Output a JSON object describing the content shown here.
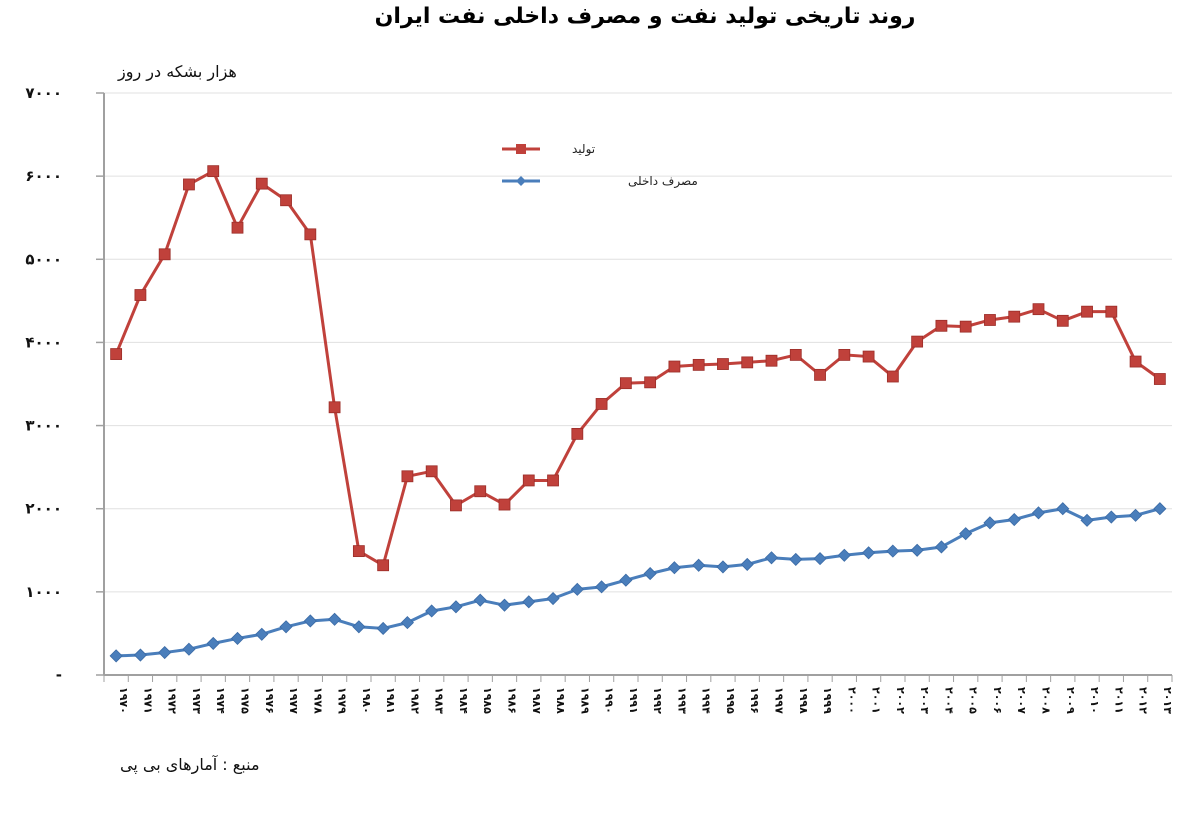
{
  "header": {
    "title": "روند تاریخی تولید نفت و مصرف داخلی نفت ایران",
    "unit_label": "هزار بشکه در روز"
  },
  "footer": {
    "source": "منبع : آمارهای بی پی"
  },
  "legend": {
    "items": [
      {
        "label": "تولید",
        "color": "#c0392b",
        "marker": "square"
      },
      {
        "label": "مصرف داخلی",
        "color": "#4a7ebb",
        "marker": "diamond"
      }
    ]
  },
  "colors": {
    "production": "#c0413b",
    "consumption": "#4a7ebb",
    "grid": "#e0e0e0",
    "axis": "#a0a0a0"
  },
  "chart_data": {
    "type": "line",
    "title": "روند تاریخی تولید نفت و مصرف داخلی نفت ایران",
    "xlabel": "",
    "ylabel": "هزار بشکه در روز",
    "ylim": [
      0,
      7000
    ],
    "yticks": [
      0,
      1000,
      2000,
      3000,
      4000,
      5000,
      6000,
      7000
    ],
    "ytick_labels": [
      "-",
      "۱۰۰۰",
      "۲۰۰۰",
      "۳۰۰۰",
      "۴۰۰۰",
      "۵۰۰۰",
      "۶۰۰۰",
      "۷۰۰۰"
    ],
    "grid": true,
    "legend_position": "upper center",
    "x": [
      1970,
      1971,
      1972,
      1973,
      1974,
      1975,
      1976,
      1977,
      1978,
      1979,
      1980,
      1981,
      1982,
      1983,
      1984,
      1985,
      1986,
      1987,
      1988,
      1989,
      1990,
      1991,
      1992,
      1993,
      1994,
      1995,
      1996,
      1997,
      1998,
      1999,
      2000,
      2001,
      2002,
      2003,
      2004,
      2005,
      2006,
      2007,
      2008,
      2009,
      2010,
      2011,
      2012,
      2013
    ],
    "x_labels": [
      "۱۹۷۰",
      "۱۹۷۱",
      "۱۹۷۲",
      "۱۹۷۳",
      "۱۹۷۴",
      "۱۹۷۵",
      "۱۹۷۶",
      "۱۹۷۷",
      "۱۹۷۸",
      "۱۹۷۹",
      "۱۹۸۰",
      "۱۹۸۱",
      "۱۹۸۲",
      "۱۹۸۳",
      "۱۹۸۴",
      "۱۹۸۵",
      "۱۹۸۶",
      "۱۹۸۷",
      "۱۹۸۸",
      "۱۹۸۹",
      "۱۹۹۰",
      "۱۹۹۱",
      "۱۹۹۲",
      "۱۹۹۳",
      "۱۹۹۴",
      "۱۹۹۵",
      "۱۹۹۶",
      "۱۹۹۷",
      "۱۹۹۸",
      "۱۹۹۹",
      "۲۰۰۰",
      "۲۰۰۱",
      "۲۰۰۲",
      "۲۰۰۳",
      "۲۰۰۴",
      "۲۰۰۵",
      "۲۰۰۶",
      "۲۰۰۷",
      "۲۰۰۸",
      "۲۰۰۹",
      "۲۰۱۰",
      "۲۰۱۱",
      "۲۰۱۲",
      "۲۰۱۳"
    ],
    "series": [
      {
        "name": "تولید",
        "values": [
          3860,
          4570,
          5060,
          5900,
          6060,
          5380,
          5910,
          5710,
          5300,
          3220,
          1490,
          1320,
          2390,
          2450,
          2040,
          2210,
          2050,
          2340,
          2340,
          2900,
          3260,
          3510,
          3520,
          3710,
          3730,
          3740,
          3760,
          3780,
          3850,
          3610,
          3850,
          3830,
          3590,
          4010,
          4200,
          4190,
          4270,
          4310,
          4400,
          4260,
          4370,
          4370,
          3770,
          3560
        ]
      },
      {
        "name": "مصرف داخلی",
        "values": [
          230,
          240,
          270,
          310,
          380,
          440,
          490,
          580,
          650,
          670,
          580,
          560,
          630,
          770,
          820,
          900,
          840,
          880,
          920,
          1030,
          1060,
          1140,
          1220,
          1290,
          1320,
          1300,
          1330,
          1410,
          1390,
          1400,
          1440,
          1470,
          1490,
          1500,
          1540,
          1700,
          1830,
          1870,
          1950,
          2000,
          1860,
          1900,
          1920,
          2000
        ]
      }
    ]
  }
}
